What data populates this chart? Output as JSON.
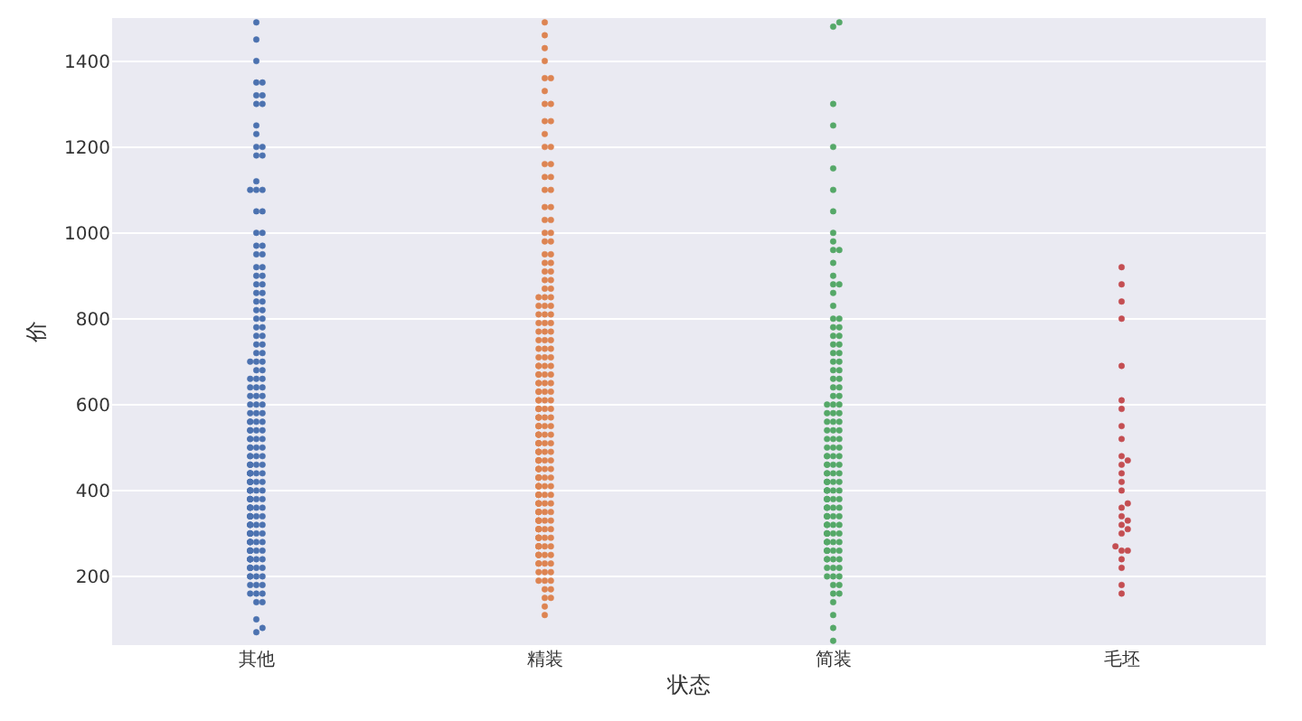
{
  "chart_data": {
    "type": "scatter",
    "xlabel": "状态",
    "ylabel": "价",
    "categories": [
      "其他",
      "精装",
      "简装",
      "毛坯"
    ],
    "ylim": [
      40,
      1500
    ],
    "yticks": [
      200,
      400,
      600,
      800,
      1000,
      1200,
      1400
    ],
    "grid": "y",
    "marker": "circle",
    "series": [
      {
        "color": "#4c72b0",
        "x": [
          "其他",
          "其他",
          "其他",
          "其他",
          "其他",
          "其他",
          "其他",
          "其他",
          "其他",
          "其他",
          "其他",
          "其他",
          "其他",
          "其他",
          "其他",
          "其他",
          "其他",
          "其他",
          "其他",
          "其他",
          "其他",
          "其他",
          "其他",
          "其他",
          "其他",
          "其他",
          "其他",
          "其他",
          "其他",
          "其他",
          "其他",
          "其他",
          "其他",
          "其他",
          "其他",
          "其他",
          "其他",
          "其他",
          "其他",
          "其他",
          "其他",
          "其他",
          "其他",
          "其他",
          "其他",
          "其他",
          "其他",
          "其他",
          "其他",
          "其他",
          "其他",
          "其他",
          "其他",
          "其他",
          "其他",
          "其他",
          "其他",
          "其他",
          "其他",
          "其他",
          "其他",
          "其他",
          "其他",
          "其他",
          "其他",
          "其他",
          "其他",
          "其他",
          "其他",
          "其他",
          "其他",
          "其他",
          "其他",
          "其他",
          "其他",
          "其他",
          "其他",
          "其他",
          "其他",
          "其他",
          "其他",
          "其他",
          "其他",
          "其他",
          "其他",
          "其他",
          "其他",
          "其他",
          "其他",
          "其他",
          "其他",
          "其他",
          "其他",
          "其他",
          "其他",
          "其他",
          "其他",
          "其他",
          "其他",
          "其他",
          "其他",
          "其他",
          "其他",
          "其他",
          "其他",
          "其他",
          "其他",
          "其他",
          "其他",
          "其他",
          "其他",
          "其他",
          "其他",
          "其他",
          "其他",
          "其他",
          "其他",
          "其他",
          "其他",
          "其他",
          "其他",
          "其他",
          "其他",
          "其他",
          "其他",
          "其他",
          "其他",
          "其他",
          "其他",
          "其他",
          "其他",
          "其他",
          "其他",
          "其他",
          "其他",
          "其他",
          "其他",
          "其他",
          "其他",
          "其他",
          "其他",
          "其他",
          "其他",
          "其他",
          "其他",
          "其他",
          "其他",
          "其他",
          "其他",
          "其他",
          "其他",
          "其他",
          "其他",
          "其他",
          "其他",
          "其他",
          "其他",
          "其他",
          "其他",
          "其他",
          "其他",
          "其他",
          "其他",
          "其他",
          "其他",
          "其他",
          "其他",
          "其他",
          "其他",
          "其他",
          "其他",
          "其他",
          "其他",
          "其他",
          "其他",
          "其他",
          "其他",
          "其他",
          "其他",
          "其他"
        ],
        "values": [
          70,
          80,
          100,
          140,
          140,
          160,
          160,
          160,
          180,
          180,
          180,
          200,
          200,
          200,
          200,
          220,
          220,
          220,
          220,
          220,
          240,
          240,
          240,
          240,
          240,
          240,
          260,
          260,
          260,
          260,
          260,
          260,
          280,
          280,
          280,
          280,
          280,
          280,
          300,
          300,
          300,
          300,
          300,
          300,
          320,
          320,
          320,
          320,
          320,
          320,
          340,
          340,
          340,
          340,
          340,
          340,
          360,
          360,
          360,
          360,
          360,
          360,
          380,
          380,
          380,
          380,
          380,
          380,
          400,
          400,
          400,
          400,
          400,
          400,
          420,
          420,
          420,
          420,
          420,
          420,
          440,
          440,
          440,
          440,
          440,
          440,
          460,
          460,
          460,
          460,
          460,
          480,
          480,
          480,
          480,
          500,
          500,
          500,
          500,
          520,
          520,
          520,
          520,
          540,
          540,
          540,
          540,
          560,
          560,
          560,
          560,
          580,
          580,
          580,
          600,
          600,
          600,
          620,
          620,
          620,
          640,
          640,
          640,
          660,
          660,
          660,
          680,
          680,
          700,
          700,
          700,
          720,
          720,
          740,
          740,
          760,
          760,
          780,
          780,
          800,
          800,
          820,
          820,
          840,
          840,
          860,
          860,
          880,
          880,
          900,
          900,
          920,
          920,
          950,
          950,
          970,
          970,
          1000,
          1000,
          1050,
          1050,
          1100,
          1100,
          1100,
          1120,
          1180,
          1180,
          1200,
          1200,
          1230,
          1250,
          1300,
          1300,
          1320,
          1320,
          1350,
          1350,
          1400,
          1450,
          1490
        ]
      },
      {
        "color": "#dd8452",
        "x": [
          "精装",
          "精装",
          "精装",
          "精装",
          "精装",
          "精装",
          "精装",
          "精装",
          "精装",
          "精装",
          "精装",
          "精装",
          "精装",
          "精装",
          "精装",
          "精装",
          "精装",
          "精装",
          "精装",
          "精装",
          "精装",
          "精装",
          "精装",
          "精装",
          "精装",
          "精装",
          "精装",
          "精装",
          "精装",
          "精装",
          "精装",
          "精装",
          "精装",
          "精装",
          "精装",
          "精装",
          "精装",
          "精装",
          "精装",
          "精装",
          "精装",
          "精装",
          "精装",
          "精装",
          "精装",
          "精装",
          "精装",
          "精装",
          "精装",
          "精装",
          "精装",
          "精装",
          "精装",
          "精装",
          "精装",
          "精装",
          "精装",
          "精装",
          "精装",
          "精装",
          "精装",
          "精装",
          "精装",
          "精装",
          "精装",
          "精装",
          "精装",
          "精装",
          "精装",
          "精装",
          "精装",
          "精装",
          "精装",
          "精装",
          "精装",
          "精装",
          "精装",
          "精装",
          "精装",
          "精装",
          "精装",
          "精装",
          "精装",
          "精装",
          "精装",
          "精装",
          "精装",
          "精装",
          "精装",
          "精装",
          "精装",
          "精装",
          "精装",
          "精装",
          "精装",
          "精装",
          "精装",
          "精装",
          "精装",
          "精装",
          "精装",
          "精装",
          "精装",
          "精装",
          "精装",
          "精装",
          "精装",
          "精装",
          "精装",
          "精装",
          "精装",
          "精装",
          "精装",
          "精装",
          "精装",
          "精装",
          "精装",
          "精装",
          "精装",
          "精装",
          "精装",
          "精装",
          "精装",
          "精装",
          "精装",
          "精装",
          "精装",
          "精装",
          "精装",
          "精装",
          "精装",
          "精装",
          "精装",
          "精装",
          "精装",
          "精装",
          "精装",
          "精装",
          "精装",
          "精装",
          "精装",
          "精装",
          "精装",
          "精装",
          "精装",
          "精装",
          "精装",
          "精装",
          "精装",
          "精装",
          "精装",
          "精装",
          "精装",
          "精装",
          "精装",
          "精装",
          "精装",
          "精装",
          "精装",
          "精装",
          "精装",
          "精装",
          "精装",
          "精装",
          "精装",
          "精装",
          "精装",
          "精装",
          "精装",
          "精装",
          "精装",
          "精装",
          "精装",
          "精装",
          "精装",
          "精装",
          "精装",
          "精装",
          "精装",
          "精装",
          "精装",
          "精装",
          "精装",
          "精装",
          "精装",
          "精装",
          "精装",
          "精装",
          "精装",
          "精装",
          "精装",
          "精装",
          "精装",
          "精装",
          "精装",
          "精装",
          "精装",
          "精装",
          "精装",
          "精装",
          "精装",
          "精装",
          "精装"
        ],
        "values": [
          110,
          130,
          150,
          150,
          170,
          170,
          190,
          190,
          190,
          210,
          210,
          210,
          230,
          230,
          230,
          230,
          250,
          250,
          250,
          250,
          250,
          270,
          270,
          270,
          270,
          270,
          270,
          290,
          290,
          290,
          290,
          290,
          290,
          310,
          310,
          310,
          310,
          310,
          310,
          330,
          330,
          330,
          330,
          330,
          330,
          350,
          350,
          350,
          350,
          350,
          350,
          370,
          370,
          370,
          370,
          370,
          370,
          390,
          390,
          390,
          390,
          390,
          390,
          410,
          410,
          410,
          410,
          410,
          410,
          410,
          430,
          430,
          430,
          430,
          430,
          430,
          450,
          450,
          450,
          450,
          450,
          450,
          470,
          470,
          470,
          470,
          470,
          470,
          490,
          490,
          490,
          490,
          490,
          490,
          510,
          510,
          510,
          510,
          510,
          510,
          530,
          530,
          530,
          530,
          530,
          530,
          550,
          550,
          550,
          550,
          550,
          570,
          570,
          570,
          570,
          570,
          590,
          590,
          590,
          590,
          590,
          610,
          610,
          610,
          610,
          630,
          630,
          630,
          630,
          650,
          650,
          650,
          650,
          670,
          670,
          670,
          670,
          690,
          690,
          690,
          690,
          710,
          710,
          710,
          730,
          730,
          730,
          750,
          750,
          750,
          770,
          770,
          770,
          790,
          790,
          790,
          810,
          810,
          810,
          830,
          830,
          830,
          850,
          850,
          850,
          870,
          870,
          890,
          890,
          910,
          910,
          930,
          930,
          950,
          950,
          980,
          980,
          1000,
          1000,
          1030,
          1030,
          1060,
          1060,
          1100,
          1100,
          1130,
          1130,
          1160,
          1160,
          1200,
          1200,
          1230,
          1260,
          1260,
          1300,
          1300,
          1330,
          1360,
          1360,
          1400,
          1430,
          1460,
          1490
        ]
      },
      {
        "color": "#55a868",
        "x": [
          "简装",
          "简装",
          "简装",
          "简装",
          "简装",
          "简装",
          "简装",
          "简装",
          "简装",
          "简装",
          "简装",
          "简装",
          "简装",
          "简装",
          "简装",
          "简装",
          "简装",
          "简装",
          "简装",
          "简装",
          "简装",
          "简装",
          "简装",
          "简装",
          "简装",
          "简装",
          "简装",
          "简装",
          "简装",
          "简装",
          "简装",
          "简装",
          "简装",
          "简装",
          "简装",
          "简装",
          "简装",
          "简装",
          "简装",
          "简装",
          "简装",
          "简装",
          "简装",
          "简装",
          "简装",
          "简装",
          "简装",
          "简装",
          "简装",
          "简装",
          "简装",
          "简装",
          "简装",
          "简装",
          "简装",
          "简装",
          "简装",
          "简装",
          "简装",
          "简装",
          "简装",
          "简装",
          "简装",
          "简装",
          "简装",
          "简装",
          "简装",
          "简装",
          "简装",
          "简装",
          "简装",
          "简装",
          "简装",
          "简装",
          "简装",
          "简装",
          "简装",
          "简装",
          "简装",
          "简装",
          "简装",
          "简装",
          "简装",
          "简装",
          "简装",
          "简装",
          "简装",
          "简装",
          "简装",
          "简装",
          "简装",
          "简装",
          "简装",
          "简装",
          "简装",
          "简装",
          "简装",
          "简装",
          "简装",
          "简装",
          "简装",
          "简装",
          "简装",
          "简装",
          "简装",
          "简装",
          "简装",
          "简装",
          "简装",
          "简装",
          "简装",
          "简装",
          "简装",
          "简装",
          "简装",
          "简装",
          "简装",
          "简装",
          "简装",
          "简装",
          "简装",
          "简装",
          "简装",
          "简装",
          "简装",
          "简装",
          "简装",
          "简装",
          "简装",
          "简装",
          "简装",
          "简装"
        ],
        "values": [
          50,
          80,
          110,
          140,
          160,
          160,
          180,
          180,
          200,
          200,
          200,
          220,
          220,
          220,
          240,
          240,
          240,
          240,
          260,
          260,
          260,
          260,
          260,
          280,
          280,
          280,
          280,
          280,
          300,
          300,
          300,
          300,
          300,
          320,
          320,
          320,
          320,
          320,
          340,
          340,
          340,
          340,
          340,
          360,
          360,
          360,
          360,
          360,
          380,
          380,
          380,
          380,
          380,
          400,
          400,
          400,
          400,
          400,
          400,
          420,
          420,
          420,
          420,
          420,
          440,
          440,
          440,
          440,
          460,
          460,
          460,
          460,
          480,
          480,
          480,
          480,
          500,
          500,
          500,
          520,
          520,
          520,
          540,
          540,
          540,
          560,
          560,
          560,
          580,
          580,
          580,
          600,
          600,
          600,
          620,
          620,
          640,
          640,
          660,
          660,
          680,
          680,
          700,
          700,
          720,
          720,
          740,
          740,
          760,
          760,
          780,
          780,
          800,
          800,
          830,
          860,
          880,
          880,
          900,
          930,
          960,
          960,
          980,
          1000,
          1050,
          1100,
          1150,
          1200,
          1250,
          1300,
          1480,
          1490
        ]
      },
      {
        "color": "#c44e52",
        "x": [
          "毛坯",
          "毛坯",
          "毛坯",
          "毛坯",
          "毛坯",
          "毛坯",
          "毛坯",
          "毛坯",
          "毛坯",
          "毛坯",
          "毛坯",
          "毛坯",
          "毛坯",
          "毛坯",
          "毛坯",
          "毛坯",
          "毛坯",
          "毛坯",
          "毛坯",
          "毛坯",
          "毛坯",
          "毛坯",
          "毛坯",
          "毛坯",
          "毛坯",
          "毛坯",
          "毛坯",
          "毛坯",
          "毛坯"
        ],
        "values": [
          160,
          180,
          220,
          240,
          260,
          260,
          270,
          300,
          310,
          320,
          330,
          340,
          360,
          370,
          400,
          420,
          440,
          460,
          470,
          480,
          520,
          550,
          590,
          610,
          690,
          800,
          840,
          880,
          920
        ]
      }
    ]
  }
}
